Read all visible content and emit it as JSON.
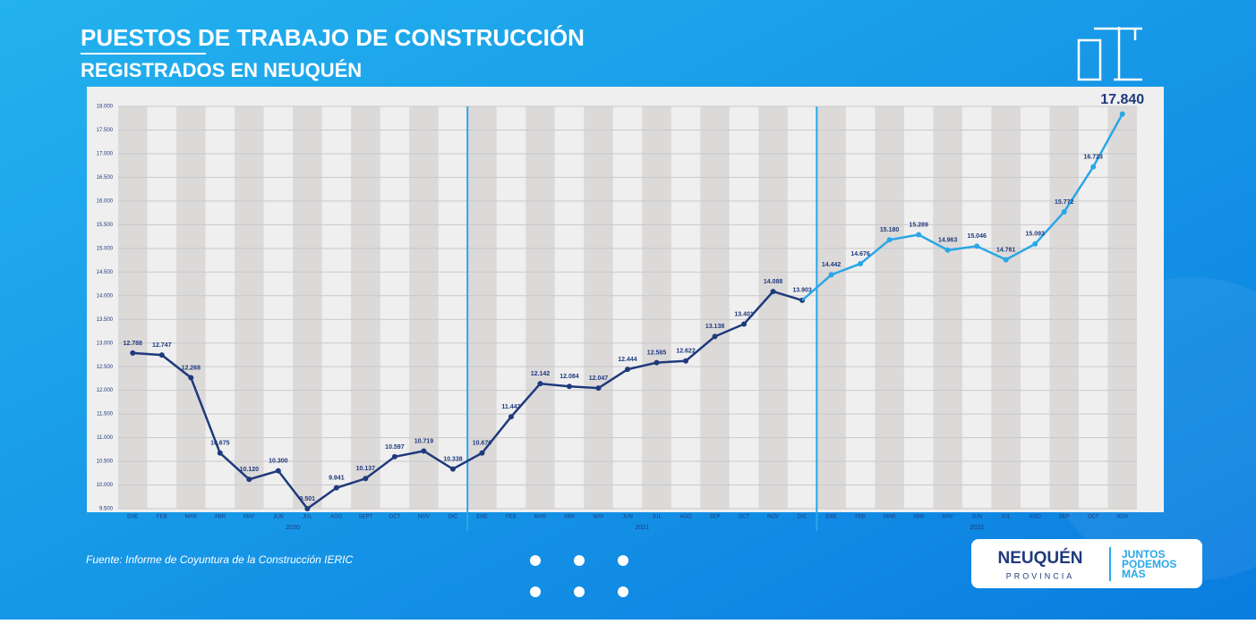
{
  "chart_data": {
    "type": "line",
    "title": "PUESTOS DE TRABAJO DE CONSTRUCCIÓN",
    "subtitle": "REGISTRADOS EN NEUQUÉN",
    "ylim": [
      9500,
      18000
    ],
    "yticks": [
      {
        "value": 9500,
        "label": "9.500"
      },
      {
        "value": 10000,
        "label": "10.000"
      },
      {
        "value": 10500,
        "label": "10.500"
      },
      {
        "value": 11000,
        "label": "11.000"
      },
      {
        "value": 11500,
        "label": "11.500"
      },
      {
        "value": 12000,
        "label": "12.000"
      },
      {
        "value": 12500,
        "label": "12.500"
      },
      {
        "value": 13000,
        "label": "13.000"
      },
      {
        "value": 13500,
        "label": "13.500"
      },
      {
        "value": 14000,
        "label": "14.000"
      },
      {
        "value": 14500,
        "label": "14.500"
      },
      {
        "value": 15000,
        "label": "15.000"
      },
      {
        "value": 15500,
        "label": "15.500"
      },
      {
        "value": 16000,
        "label": "16.000"
      },
      {
        "value": 16500,
        "label": "16.500"
      },
      {
        "value": 17000,
        "label": "17.000"
      },
      {
        "value": 17500,
        "label": "17.500"
      },
      {
        "value": 18000,
        "label": "18.000"
      }
    ],
    "grid": true,
    "groups": [
      {
        "label": "2020",
        "color": "#1f3a7c",
        "categories": [
          "ENE",
          "FEB",
          "MAR",
          "ABR",
          "MAY",
          "JUN",
          "JUL",
          "AGO",
          "SEPT",
          "OCT",
          "NOV",
          "DIC"
        ],
        "values": [
          12788,
          12747,
          12268,
          10675,
          10120,
          10300,
          9501,
          9941,
          10137,
          10597,
          10719,
          10338
        ],
        "value_labels": [
          "12.788",
          "12.747",
          "12.268",
          "10.675",
          "10.120",
          "10.300",
          "9.501",
          "9.941",
          "10.137",
          "10.597",
          "10.719",
          "10.338"
        ]
      },
      {
        "label": "2021",
        "color": "#1f3a7c",
        "categories": [
          "ENE",
          "FEB",
          "MAR",
          "ABR",
          "MAY",
          "JUN",
          "JUL",
          "AGO",
          "SEP",
          "OCT",
          "NOV",
          "DIC"
        ],
        "values": [
          10676,
          11442,
          12142,
          12084,
          12047,
          12444,
          12585,
          12622,
          13138,
          13401,
          14088,
          13903
        ],
        "value_labels": [
          "10.676",
          "11.442",
          "12.142",
          "12.084",
          "12.047",
          "12.444",
          "12.585",
          "12.622",
          "13.138",
          "13.401",
          "14.088",
          "13.903"
        ]
      },
      {
        "label": "2022",
        "color": "#2aa7e6",
        "categories": [
          "ENE",
          "FEB",
          "MAR",
          "ABR",
          "MAY",
          "JUN",
          "JUL",
          "AGO",
          "SEP",
          "OCT",
          "NOV"
        ],
        "values": [
          14442,
          14676,
          15180,
          15289,
          14963,
          15046,
          14761,
          15093,
          15772,
          16723,
          17840
        ],
        "value_labels": [
          "14.442",
          "14.676",
          "15.180",
          "15.289",
          "14.963",
          "15.046",
          "14.761",
          "15.093",
          "15.772",
          "16.723",
          "17.840"
        ]
      }
    ],
    "source": "Fuente: Informe de Coyuntura de la Construcción IERIC",
    "logo": {
      "name": "NEUQUÉN",
      "sub": "PROVINCIA",
      "slogan": [
        "JUNTOS",
        "PODEMOS",
        "MÁS"
      ]
    }
  }
}
